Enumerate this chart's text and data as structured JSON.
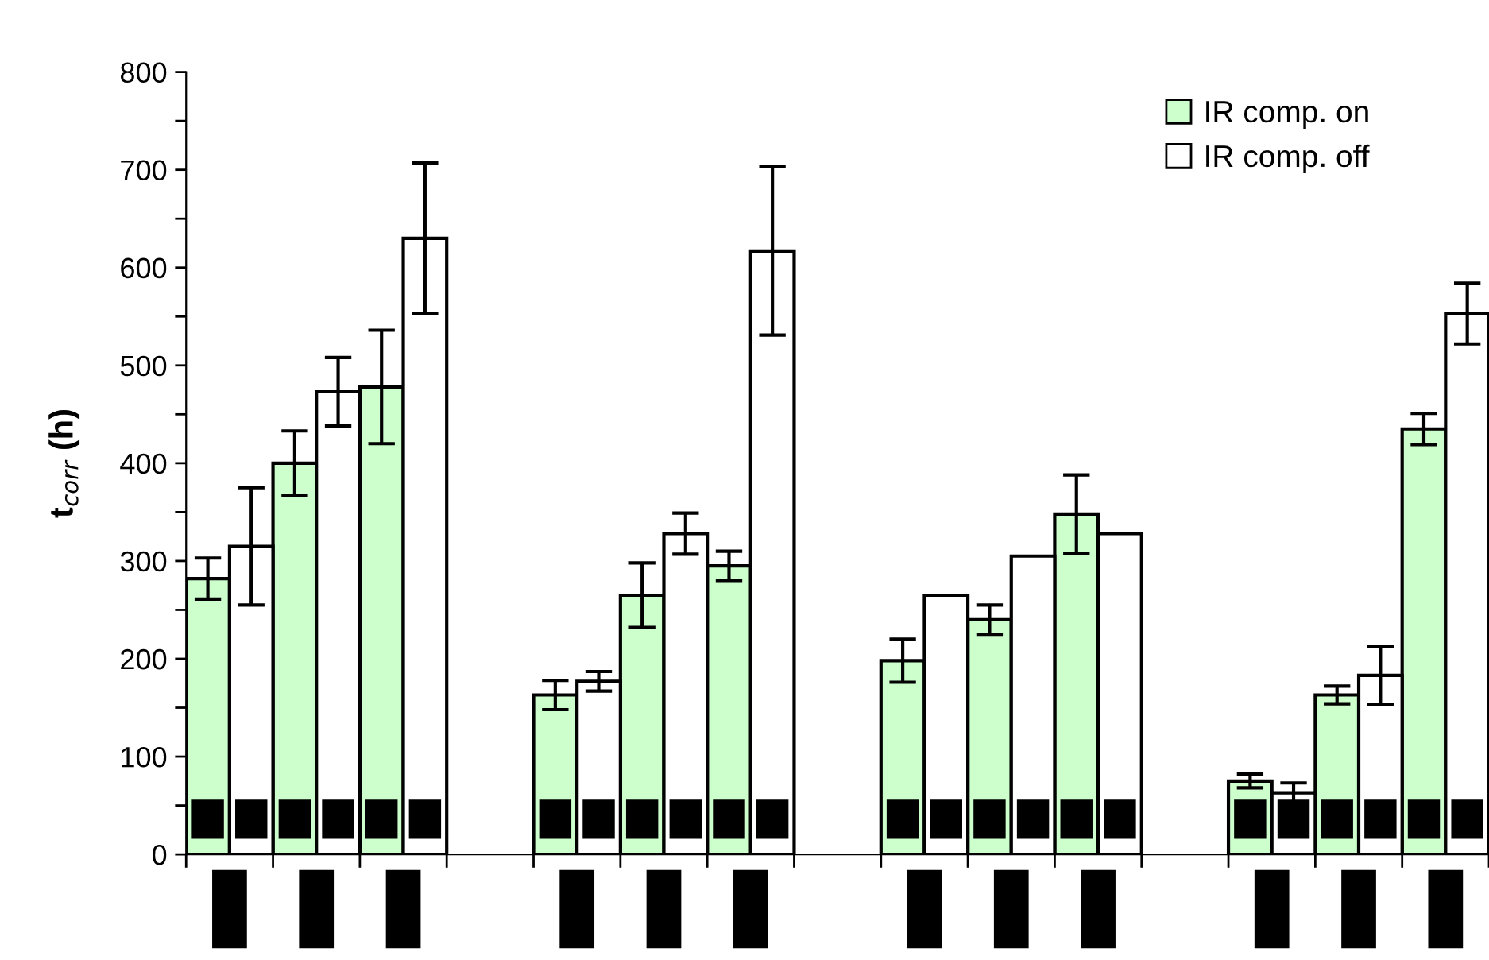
{
  "chart_data": {
    "type": "bar",
    "ylabel": "t$_{corr}$ (h)",
    "categories": [
      null,
      null,
      null,
      null,
      null,
      null,
      null,
      null,
      null,
      null,
      null,
      null,
      null,
      null,
      null
    ],
    "series": [
      {
        "name": "IR comp. on",
        "color": "#ccffcc",
        "values": [
          282,
          400,
          478,
          null,
          163,
          265,
          295,
          null,
          198,
          240,
          348,
          null,
          75,
          163,
          435
        ],
        "errors": [
          21,
          33,
          58,
          null,
          15,
          33,
          15,
          null,
          22,
          15,
          40,
          null,
          7,
          9,
          16
        ]
      },
      {
        "name": "IR comp. off",
        "color": "#ffffff",
        "values": [
          315,
          473,
          630,
          null,
          177,
          328,
          617,
          null,
          265,
          305,
          328,
          null,
          63,
          183,
          553
        ],
        "errors": [
          60,
          35,
          77,
          null,
          10,
          21,
          86,
          null,
          null,
          null,
          null,
          null,
          10,
          30,
          31
        ]
      }
    ],
    "ylim": [
      0,
      800
    ],
    "yticks": [
      0,
      {
        "value": 50,
        "label": null
      },
      100,
      {
        "value": 150,
        "label": null
      },
      200,
      {
        "value": 250,
        "label": null
      },
      300,
      {
        "value": 350,
        "label": null
      },
      400,
      {
        "value": 450,
        "label": null
      },
      500,
      {
        "value": 550,
        "label": null
      },
      600,
      {
        "value": 650,
        "label": null
      },
      700,
      {
        "value": 750,
        "label": null
      },
      800
    ],
    "grid": false,
    "legend": "top right"
  }
}
